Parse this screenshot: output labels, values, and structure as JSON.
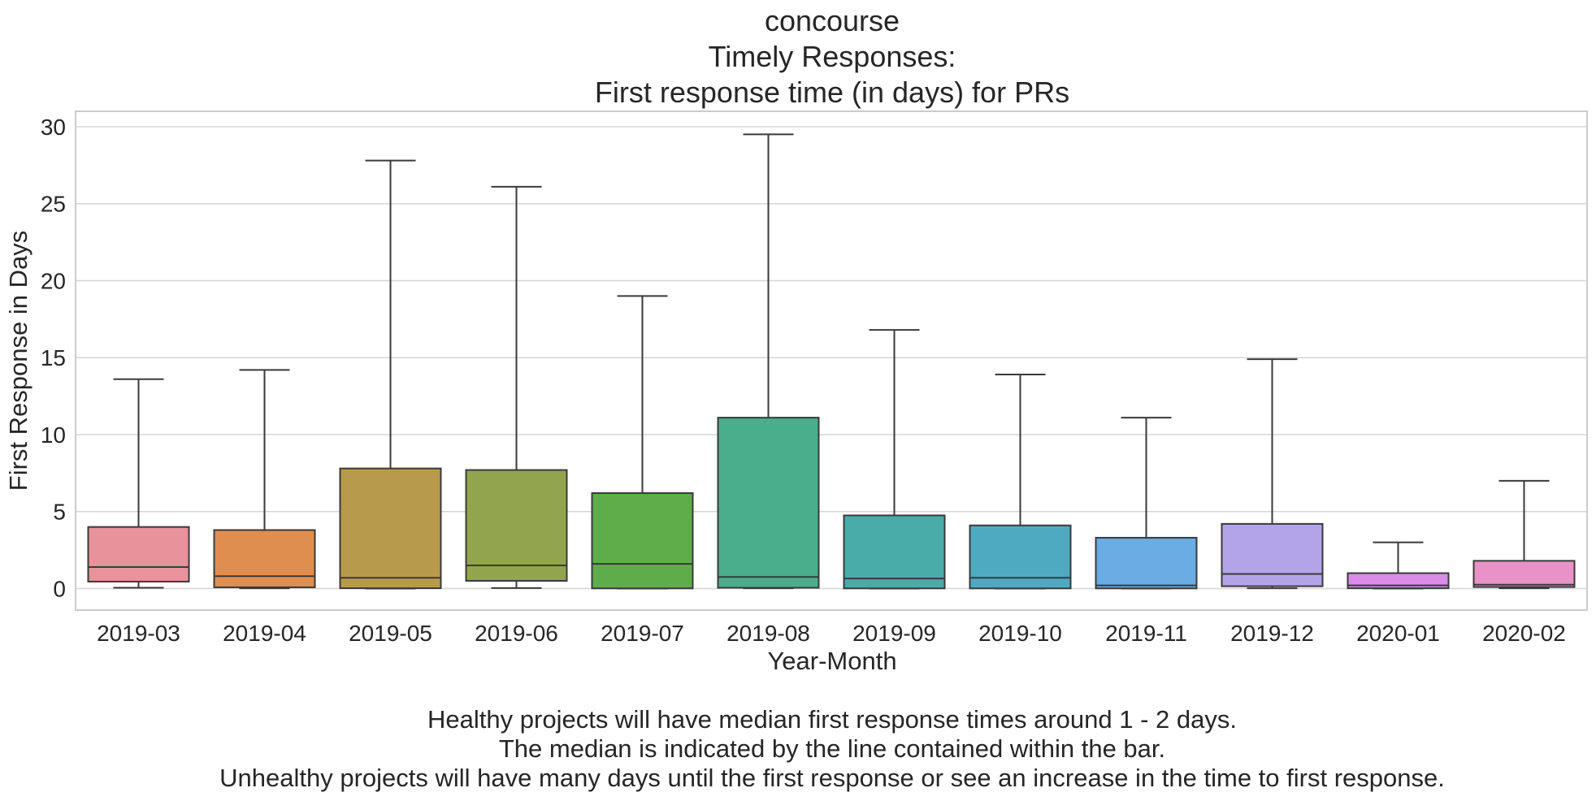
{
  "chart_data": {
    "type": "box",
    "title": [
      "concourse",
      "Timely Responses:",
      "First response time (in days) for PRs"
    ],
    "xlabel": "Year-Month",
    "ylabel": "First Response in Days",
    "ylim": [
      -1.4,
      31
    ],
    "yticks": [
      0,
      5,
      10,
      15,
      20,
      25,
      30
    ],
    "grid": true,
    "categories": [
      "2019-03",
      "2019-04",
      "2019-05",
      "2019-06",
      "2019-07",
      "2019-08",
      "2019-09",
      "2019-10",
      "2019-11",
      "2019-12",
      "2020-01",
      "2020-02"
    ],
    "boxes": [
      {
        "category": "2019-03",
        "whisker_low": 0.05,
        "q1": 0.45,
        "median": 1.4,
        "q3": 4.0,
        "whisker_high": 13.6,
        "color": "#e8939b"
      },
      {
        "category": "2019-04",
        "whisker_low": 0.02,
        "q1": 0.08,
        "median": 0.8,
        "q3": 3.8,
        "whisker_high": 14.2,
        "color": "#e08e4f"
      },
      {
        "category": "2019-05",
        "whisker_low": 0.0,
        "q1": 0.02,
        "median": 0.7,
        "q3": 7.8,
        "whisker_high": 27.8,
        "color": "#b89a4c"
      },
      {
        "category": "2019-06",
        "whisker_low": 0.03,
        "q1": 0.5,
        "median": 1.5,
        "q3": 7.7,
        "whisker_high": 26.1,
        "color": "#93a54c"
      },
      {
        "category": "2019-07",
        "whisker_low": 0.0,
        "q1": 0.01,
        "median": 1.6,
        "q3": 6.2,
        "whisker_high": 19.0,
        "color": "#5fad4a"
      },
      {
        "category": "2019-08",
        "whisker_low": 0.02,
        "q1": 0.05,
        "median": 0.75,
        "q3": 11.1,
        "whisker_high": 29.5,
        "color": "#4aae8c"
      },
      {
        "category": "2019-09",
        "whisker_low": 0.0,
        "q1": 0.01,
        "median": 0.65,
        "q3": 4.75,
        "whisker_high": 16.8,
        "color": "#49aca9"
      },
      {
        "category": "2019-10",
        "whisker_low": 0.0,
        "q1": 0.01,
        "median": 0.7,
        "q3": 4.1,
        "whisker_high": 13.9,
        "color": "#4eaac0"
      },
      {
        "category": "2019-11",
        "whisker_low": 0.0,
        "q1": 0.01,
        "median": 0.2,
        "q3": 3.3,
        "whisker_high": 11.1,
        "color": "#6aace3"
      },
      {
        "category": "2019-12",
        "whisker_low": 0.02,
        "q1": 0.15,
        "median": 0.95,
        "q3": 4.2,
        "whisker_high": 14.9,
        "color": "#b3a4ea"
      },
      {
        "category": "2020-01",
        "whisker_low": 0.0,
        "q1": 0.02,
        "median": 0.2,
        "q3": 1.0,
        "whisker_high": 3.0,
        "color": "#d98de8"
      },
      {
        "category": "2020-02",
        "whisker_low": 0.02,
        "q1": 0.1,
        "median": 0.25,
        "q3": 1.8,
        "whisker_high": 7.0,
        "color": "#e892c8"
      }
    ]
  },
  "caption": [
    "Healthy projects will have median first response times around 1 - 2 days.",
    "The median is indicated by the line contained within the bar.",
    "Unhealthy projects will have many days until the first response or see an increase in the time to first response."
  ]
}
